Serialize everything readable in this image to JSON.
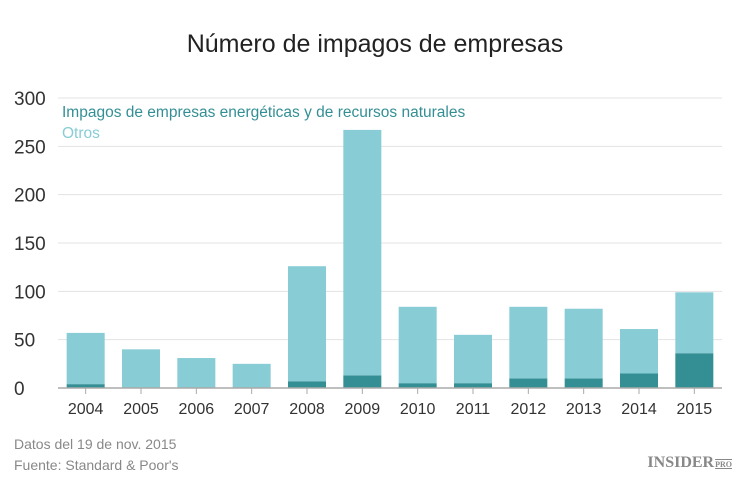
{
  "chart_data": {
    "type": "bar",
    "stacked": true,
    "title": "Número de impagos de empresas",
    "categories": [
      "2004",
      "2005",
      "2006",
      "2007",
      "2008",
      "2009",
      "2010",
      "2011",
      "2012",
      "2013",
      "2014",
      "2015"
    ],
    "series": [
      {
        "name": "Impagos de empresas energéticas y de recursos naturales",
        "color": "#338f94",
        "values": [
          4,
          0,
          0,
          0,
          7,
          13,
          5,
          5,
          10,
          10,
          15,
          36
        ]
      },
      {
        "name": "Otros",
        "color": "#88ccd5",
        "values": [
          53,
          40,
          31,
          25,
          119,
          254,
          79,
          50,
          74,
          72,
          46,
          63
        ]
      }
    ],
    "yticks": [
      0,
      50,
      100,
      150,
      200,
      250,
      300
    ],
    "ylim": [
      0,
      300
    ],
    "grid": true,
    "legend": "top-left"
  },
  "footer": {
    "line1": "Datos del 19 de nov. 2015",
    "line2": "Fuente: Standard & Poor's"
  },
  "logo": {
    "main": "INSIDER",
    "sub": "PRO"
  }
}
